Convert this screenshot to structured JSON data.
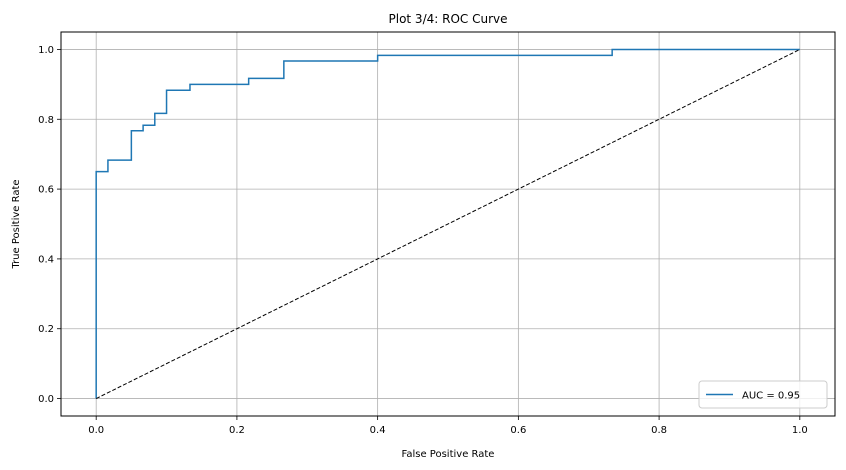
{
  "chart_data": {
    "type": "line",
    "title": "Plot 3/4: ROC Curve",
    "xlabel": "False Positive Rate",
    "ylabel": "True Positive Rate",
    "xlim": [
      -0.05,
      1.05
    ],
    "ylim": [
      -0.05,
      1.05
    ],
    "xticks": [
      0.0,
      0.2,
      0.4,
      0.6,
      0.8,
      1.0
    ],
    "xtick_labels": [
      "0.0",
      "0.2",
      "0.4",
      "0.6",
      "0.8",
      "1.0"
    ],
    "yticks": [
      0.0,
      0.2,
      0.4,
      0.6,
      0.8,
      1.0
    ],
    "ytick_labels": [
      "0.0",
      "0.2",
      "0.4",
      "0.6",
      "0.8",
      "1.0"
    ],
    "grid": true,
    "legend_position": "lower-right",
    "series": [
      {
        "name": "AUC = 0.95",
        "style": "step",
        "color": "#1f77b4",
        "x": [
          0.0,
          0.0,
          0.0167,
          0.0167,
          0.05,
          0.05,
          0.0667,
          0.0667,
          0.0833,
          0.0833,
          0.1,
          0.1,
          0.1333,
          0.1333,
          0.2167,
          0.2167,
          0.2667,
          0.2667,
          0.4,
          0.4,
          0.7333,
          0.7333,
          1.0
        ],
        "y": [
          0.0,
          0.65,
          0.65,
          0.683,
          0.683,
          0.767,
          0.767,
          0.783,
          0.783,
          0.817,
          0.817,
          0.883,
          0.883,
          0.9,
          0.9,
          0.917,
          0.917,
          0.967,
          0.967,
          0.983,
          0.983,
          1.0,
          1.0
        ]
      },
      {
        "name": "",
        "style": "dashed",
        "color": "#000000",
        "x": [
          0.0,
          1.0
        ],
        "y": [
          0.0,
          1.0
        ]
      }
    ]
  }
}
